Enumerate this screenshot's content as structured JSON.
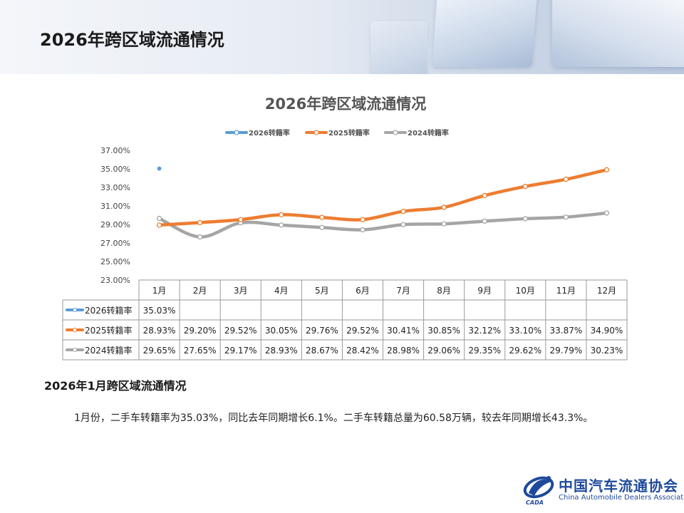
{
  "page": {
    "title": "2026年跨区域流通情况",
    "sub_heading": "2026年1月跨区域流通情况",
    "body_text": "1月份，二手车转籍率为35.03%，同比去年同期增长6.1%。二手车转籍总量为60.58万辆，较去年同期增长43.3%。"
  },
  "logo": {
    "cn": "中国汽车流通协会",
    "en": "China Automobile Dealers Association",
    "mark_text": "CADA"
  },
  "chart_data": {
    "type": "line",
    "title": "2026年跨区域流通情况",
    "categories": [
      "1月",
      "2月",
      "3月",
      "4月",
      "5月",
      "6月",
      "7月",
      "8月",
      "9月",
      "10月",
      "11月",
      "12月"
    ],
    "y_ticks": [
      "37.00%",
      "35.00%",
      "33.00%",
      "31.00%",
      "29.00%",
      "27.00%",
      "25.00%",
      "23.00%"
    ],
    "ylim": [
      23,
      37
    ],
    "legend_position": "top",
    "series": [
      {
        "name": "2026转籍率",
        "color": "#5b9bd5",
        "values": [
          35.03,
          null,
          null,
          null,
          null,
          null,
          null,
          null,
          null,
          null,
          null,
          null
        ],
        "labels": [
          "35.03%",
          "",
          "",
          "",
          "",
          "",
          "",
          "",
          "",
          "",
          "",
          ""
        ]
      },
      {
        "name": "2025转籍率",
        "color": "#ed7d31",
        "values": [
          28.93,
          29.2,
          29.52,
          30.05,
          29.76,
          29.52,
          30.41,
          30.85,
          32.12,
          33.1,
          33.87,
          34.9
        ],
        "labels": [
          "28.93%",
          "29.20%",
          "29.52%",
          "30.05%",
          "29.76%",
          "29.52%",
          "30.41%",
          "30.85%",
          "32.12%",
          "33.10%",
          "33.87%",
          "34.90%"
        ]
      },
      {
        "name": "2024转籍率",
        "color": "#a5a5a5",
        "values": [
          29.65,
          27.65,
          29.17,
          28.93,
          28.67,
          28.42,
          28.98,
          29.06,
          29.35,
          29.62,
          29.79,
          30.23
        ],
        "labels": [
          "29.65%",
          "27.65%",
          "29.17%",
          "28.93%",
          "28.67%",
          "28.42%",
          "28.98%",
          "29.06%",
          "29.35%",
          "29.62%",
          "29.79%",
          "30.23%"
        ]
      }
    ]
  }
}
